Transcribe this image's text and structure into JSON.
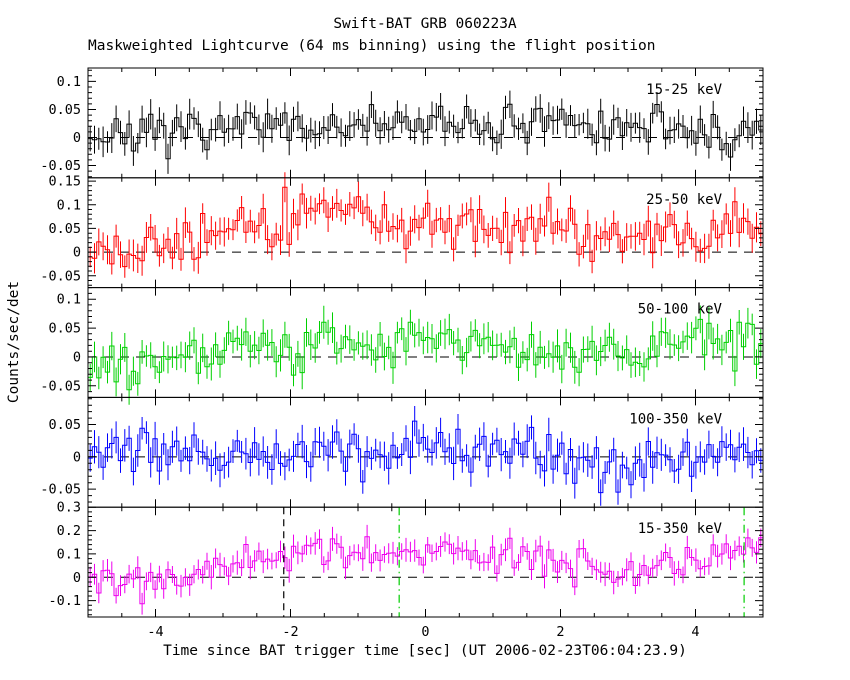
{
  "header": {
    "title": "Swift-BAT GRB 060223A",
    "subtitle": "Maskweighted Lightcurve (64 ms binning) using the flight position"
  },
  "axes": {
    "xlabel": "Time since BAT trigger time [sec] (UT 2006-02-23T06:04:23.9)",
    "ylabel": "Counts/sec/det"
  },
  "colors": {
    "frame": "#000000",
    "zero_line": "#000000",
    "event_line_green": "#00cc00"
  },
  "chart_data": {
    "type": "line",
    "subtype": "step-histogram-with-errorbars",
    "x_range": [
      -5,
      5
    ],
    "bin_sec": 0.064,
    "xtick_values": [
      -4,
      -2,
      0,
      2,
      4
    ],
    "xtick_labels": [
      "-4",
      "-2",
      "0",
      "2",
      "4"
    ],
    "xminor_step": 0.5,
    "trend_t_step": 0.5,
    "panels": [
      {
        "label": "15-25 keV",
        "color": "#000000",
        "ylim": [
          -0.072,
          0.124
        ],
        "ytick_values": [
          -0.05,
          0,
          0.05,
          0.1
        ],
        "ytick_labels": [
          "-0.05",
          "0",
          "0.05",
          "0.1"
        ],
        "yminor_step": 0.01,
        "trend": [
          0.005,
          0.01,
          0.0,
          0.01,
          0.015,
          0.02,
          0.015,
          0.02,
          0.025,
          0.02,
          0.02,
          0.025,
          0.02,
          0.015,
          0.025,
          0.02,
          0.015,
          0.02,
          0.01,
          0.0,
          0.015
        ],
        "scatter": 0.017,
        "err": 0.022,
        "seed": 7
      },
      {
        "label": "25-50 keV",
        "color": "#ff0000",
        "ylim": [
          -0.075,
          0.157
        ],
        "ytick_values": [
          -0.05,
          0,
          0.05,
          0.1,
          0.15
        ],
        "ytick_labels": [
          "-0.05",
          "0",
          "0.05",
          "0.1",
          "0.15"
        ],
        "yminor_step": 0.01,
        "trend": [
          0.03,
          0.02,
          0.01,
          0.02,
          0.035,
          0.05,
          0.07,
          0.1,
          0.09,
          0.055,
          0.05,
          0.055,
          0.06,
          0.05,
          0.065,
          0.03,
          0.02,
          0.04,
          0.025,
          0.05,
          0.06
        ],
        "scatter": 0.024,
        "err": 0.027,
        "seed": 13
      },
      {
        "label": "50-100 keV",
        "color": "#00d000",
        "ylim": [
          -0.07,
          0.12
        ],
        "ytick_values": [
          -0.05,
          0,
          0.05,
          0.1
        ],
        "ytick_labels": [
          "-0.05",
          "0",
          "0.05",
          "0.1"
        ],
        "yminor_step": 0.01,
        "trend": [
          -0.02,
          -0.015,
          -0.01,
          0.0,
          0.005,
          0.015,
          0.02,
          0.035,
          0.03,
          0.02,
          0.035,
          0.03,
          0.02,
          0.01,
          0.01,
          0.005,
          0.01,
          0.015,
          0.04,
          0.03,
          0.02
        ],
        "scatter": 0.02,
        "err": 0.023,
        "seed": 21
      },
      {
        "label": "100-350 keV",
        "color": "#0000ff",
        "ylim": [
          -0.078,
          0.092
        ],
        "ytick_values": [
          -0.05,
          0,
          0.05
        ],
        "ytick_labels": [
          "-0.05",
          "0",
          "0.05"
        ],
        "yminor_step": 0.01,
        "trend": [
          0.0,
          0.005,
          0.0,
          0.005,
          0.0,
          0.01,
          0.0,
          0.01,
          0.005,
          0.0,
          0.01,
          0.0,
          0.005,
          0.01,
          0.0,
          -0.01,
          -0.02,
          -0.005,
          0.005,
          0.0,
          0.0
        ],
        "scatter": 0.018,
        "err": 0.021,
        "seed": 33
      },
      {
        "label": "15-350 keV",
        "color": "#ee00ee",
        "ylim": [
          -0.17,
          0.3
        ],
        "ytick_values": [
          -0.1,
          0,
          0.1,
          0.2,
          0.3
        ],
        "ytick_labels": [
          "-0.1",
          "0",
          "0.1",
          "0.2",
          "0.3"
        ],
        "yminor_step": 0.02,
        "trend": [
          0.02,
          0.0,
          -0.02,
          0.01,
          0.04,
          0.07,
          0.1,
          0.12,
          0.13,
          0.1,
          0.12,
          0.11,
          0.09,
          0.11,
          0.08,
          0.02,
          0.0,
          0.06,
          0.09,
          0.1,
          0.12
        ],
        "scatter": 0.038,
        "err": 0.042,
        "seed": 47
      }
    ],
    "zero_line": {
      "value": 0,
      "style": "dashed",
      "color": "#000000"
    },
    "event_lines": [
      {
        "panel": 4,
        "t": -2.1,
        "color": "#000000",
        "style": "dashed"
      },
      {
        "panel": 4,
        "t": -0.39,
        "color": "#00cc00",
        "style": "dashdot"
      },
      {
        "panel": 4,
        "t": 4.72,
        "color": "#00cc00",
        "style": "dashdot"
      }
    ]
  }
}
